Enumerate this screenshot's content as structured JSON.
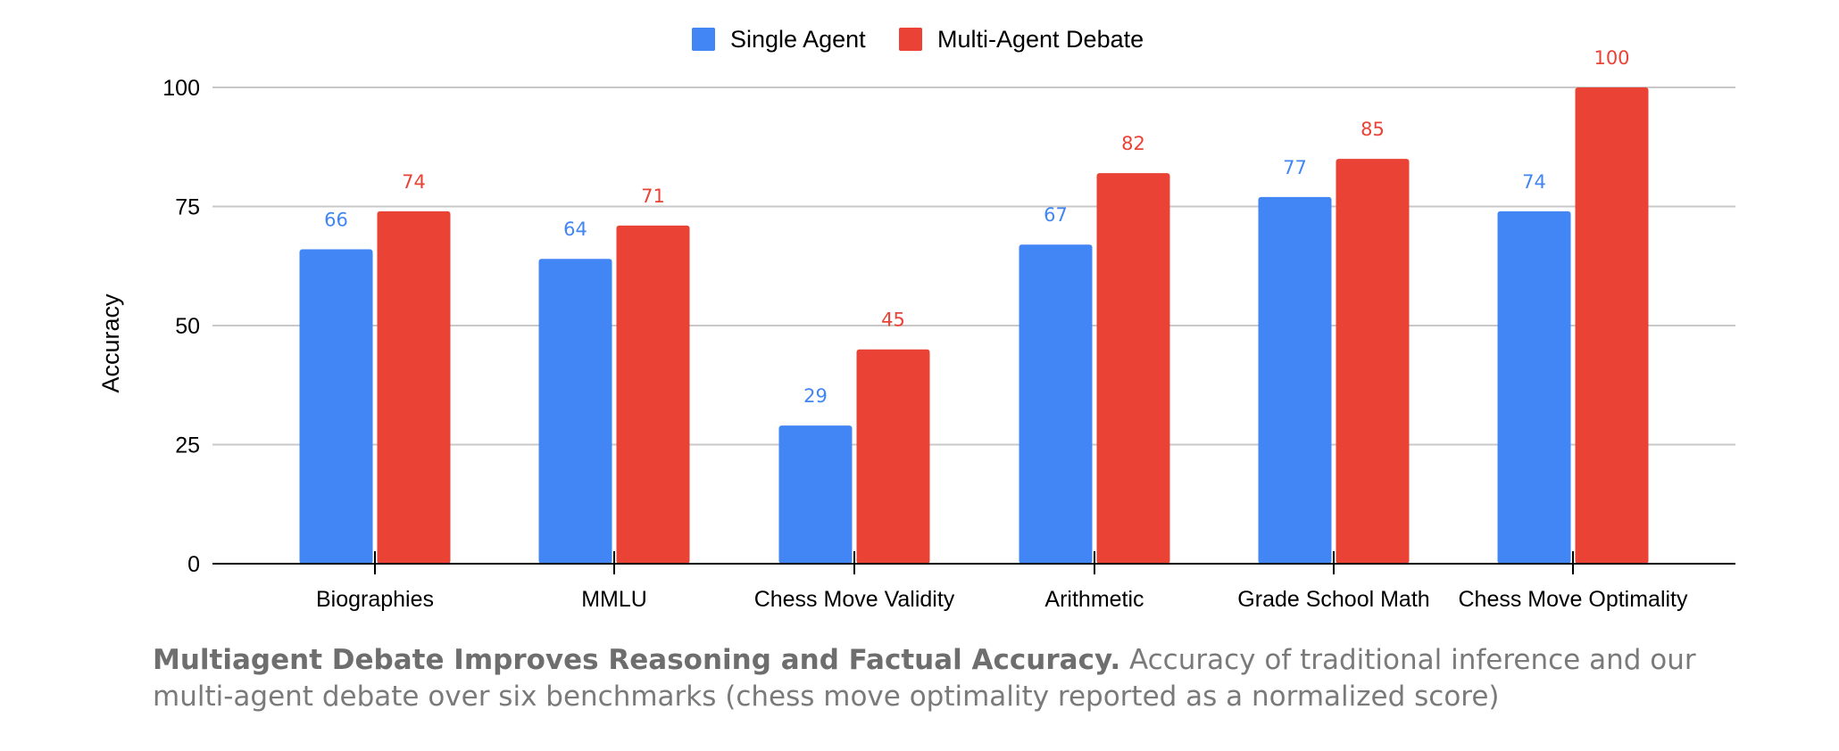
{
  "chart_data": {
    "type": "bar",
    "categories": [
      "Biographies",
      "MMLU",
      "Chess Move Validity",
      "Arithmetic",
      "Grade School Math",
      "Chess Move Optimality"
    ],
    "series": [
      {
        "name": "Single Agent",
        "values": [
          66,
          64,
          29,
          67,
          77,
          74
        ],
        "labels": [
          "66",
          "64",
          "29",
          "67",
          "77",
          "74"
        ],
        "color": "#4285f4"
      },
      {
        "name": "Multi-Agent Debate",
        "values": [
          74,
          71,
          45,
          82,
          85,
          100
        ],
        "labels": [
          "74",
          "71",
          "45",
          "82",
          "85",
          "100"
        ],
        "color": "#ea4335"
      }
    ],
    "ylabel": "Accuracy",
    "xlabel": "",
    "ylim": [
      0,
      100
    ],
    "yticks": [
      0,
      25,
      50,
      75,
      100
    ],
    "ytick_labels": [
      "0",
      "25",
      "50",
      "75",
      "100"
    ],
    "grid": true,
    "legend_position": "top-center"
  },
  "caption": {
    "bold": "Multiagent Debate Improves Reasoning and Factual Accuracy.",
    "text": " Accuracy of traditional inference and our multi-agent debate over six benchmarks (chess move optimality reported as a normalized score)"
  }
}
